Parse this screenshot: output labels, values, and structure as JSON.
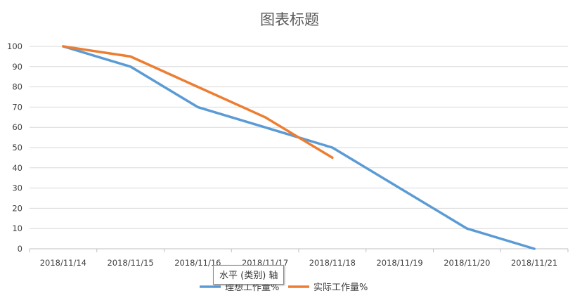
{
  "chart_data": {
    "type": "line",
    "title": "图表标题",
    "categories": [
      "2018/11/14",
      "2018/11/15",
      "2018/11/16",
      "2018/11/17",
      "2018/11/18",
      "2018/11/19",
      "2018/11/20",
      "2018/11/21"
    ],
    "series": [
      {
        "name": "理想工作量%",
        "color": "#5B9BD5",
        "values": [
          100,
          90,
          70,
          60,
          50,
          30,
          10,
          0
        ]
      },
      {
        "name": "实际工作量%",
        "color": "#ED7D31",
        "values": [
          100,
          95,
          80,
          65,
          45,
          null,
          null,
          null
        ]
      }
    ],
    "ylim": [
      0,
      100
    ],
    "yticks": [
      0,
      10,
      20,
      30,
      40,
      50,
      60,
      70,
      80,
      90,
      100
    ],
    "grid": true,
    "legend": "bottom"
  },
  "tooltip": {
    "text": "水平 (类别) 轴"
  }
}
